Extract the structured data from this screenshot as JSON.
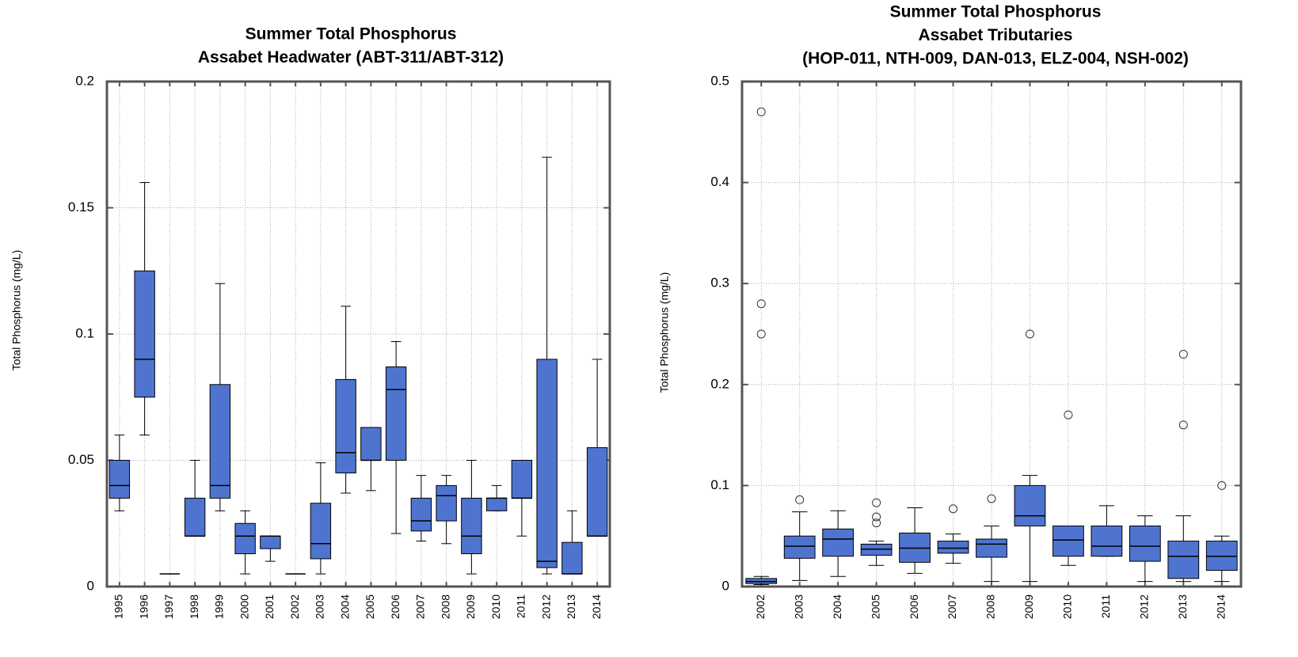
{
  "chart_data": [
    {
      "type": "box",
      "title": "Summer Total Phosphorus",
      "subtitle": [
        "Assabet Headwater (ABT-311/ABT-312)"
      ],
      "y_label": "Total Phosphorus (mg/L)",
      "color": "#4f74d0",
      "grid": true,
      "ylim": [
        0,
        0.2
      ],
      "yticks": [
        0,
        0.05,
        0.1,
        0.15,
        0.2
      ],
      "categories": [
        "1995",
        "1996",
        "1997",
        "1998",
        "1999",
        "2000",
        "2001",
        "2002",
        "2003",
        "2004",
        "2005",
        "2006",
        "2007",
        "2008",
        "2009",
        "2010",
        "2011",
        "2012",
        "2013",
        "2014"
      ],
      "boxes": [
        {
          "low": 0.03,
          "q1": 0.035,
          "median": 0.04,
          "q3": 0.05,
          "high": 0.06,
          "outliers": []
        },
        {
          "low": 0.06,
          "q1": 0.075,
          "median": 0.09,
          "q3": 0.125,
          "high": 0.16,
          "outliers": []
        },
        {
          "low": 0.005,
          "q1": 0.005,
          "median": 0.005,
          "q3": 0.005,
          "high": 0.005,
          "outliers": []
        },
        {
          "low": 0.02,
          "q1": 0.02,
          "median": 0.02,
          "q3": 0.035,
          "high": 0.05,
          "outliers": []
        },
        {
          "low": 0.03,
          "q1": 0.035,
          "median": 0.04,
          "q3": 0.08,
          "high": 0.12,
          "outliers": []
        },
        {
          "low": 0.005,
          "q1": 0.013,
          "median": 0.02,
          "q3": 0.025,
          "high": 0.03,
          "outliers": []
        },
        {
          "low": 0.01,
          "q1": 0.015,
          "median": 0.02,
          "q3": 0.02,
          "high": 0.02,
          "outliers": []
        },
        {
          "low": 0.005,
          "q1": 0.005,
          "median": 0.005,
          "q3": 0.005,
          "high": 0.005,
          "outliers": []
        },
        {
          "low": 0.005,
          "q1": 0.011,
          "median": 0.017,
          "q3": 0.033,
          "high": 0.049,
          "outliers": []
        },
        {
          "low": 0.037,
          "q1": 0.045,
          "median": 0.053,
          "q3": 0.082,
          "high": 0.111,
          "outliers": []
        },
        {
          "low": 0.038,
          "q1": 0.05,
          "median": 0.05,
          "q3": 0.063,
          "high": 0.063,
          "outliers": []
        },
        {
          "low": 0.021,
          "q1": 0.05,
          "median": 0.078,
          "q3": 0.087,
          "high": 0.097,
          "outliers": []
        },
        {
          "low": 0.018,
          "q1": 0.022,
          "median": 0.026,
          "q3": 0.035,
          "high": 0.044,
          "outliers": []
        },
        {
          "low": 0.017,
          "q1": 0.026,
          "median": 0.036,
          "q3": 0.04,
          "high": 0.044,
          "outliers": []
        },
        {
          "low": 0.005,
          "q1": 0.013,
          "median": 0.02,
          "q3": 0.035,
          "high": 0.05,
          "outliers": []
        },
        {
          "low": 0.03,
          "q1": 0.03,
          "median": 0.035,
          "q3": 0.035,
          "high": 0.04,
          "outliers": []
        },
        {
          "low": 0.02,
          "q1": 0.035,
          "median": 0.035,
          "q3": 0.05,
          "high": 0.05,
          "outliers": []
        },
        {
          "low": 0.005,
          "q1": 0.0075,
          "median": 0.01,
          "q3": 0.09,
          "high": 0.17,
          "outliers": []
        },
        {
          "low": 0.005,
          "q1": 0.005,
          "median": 0.005,
          "q3": 0.0175,
          "high": 0.03,
          "outliers": []
        },
        {
          "low": 0.02,
          "q1": 0.02,
          "median": 0.02,
          "q3": 0.055,
          "high": 0.09,
          "outliers": []
        }
      ]
    },
    {
      "type": "box",
      "title": "Summer Total Phosphorus",
      "subtitle": [
        "Assabet Tributaries",
        "(HOP-011, NTH-009, DAN-013, ELZ-004, NSH-002)"
      ],
      "y_label": "Total Phosphorus (mg/L)",
      "color": "#4f74d0",
      "grid": true,
      "ylim": [
        0,
        0.5
      ],
      "yticks": [
        0,
        0.1,
        0.2,
        0.3,
        0.4,
        0.5
      ],
      "categories": [
        "2002",
        "2003",
        "2004",
        "2005",
        "2006",
        "2007",
        "2008",
        "2009",
        "2010",
        "2011",
        "2012",
        "2013",
        "2014"
      ],
      "boxes": [
        {
          "low": 0.002,
          "q1": 0.003,
          "median": 0.005,
          "q3": 0.008,
          "high": 0.01,
          "outliers": [
            0.47,
            0.28,
            0.25
          ]
        },
        {
          "low": 0.006,
          "q1": 0.028,
          "median": 0.04,
          "q3": 0.05,
          "high": 0.074,
          "outliers": [
            0.086
          ]
        },
        {
          "low": 0.01,
          "q1": 0.03,
          "median": 0.047,
          "q3": 0.057,
          "high": 0.075,
          "outliers": []
        },
        {
          "low": 0.021,
          "q1": 0.031,
          "median": 0.037,
          "q3": 0.042,
          "high": 0.045,
          "outliers": [
            0.083,
            0.069,
            0.063
          ]
        },
        {
          "low": 0.013,
          "q1": 0.024,
          "median": 0.038,
          "q3": 0.053,
          "high": 0.078,
          "outliers": []
        },
        {
          "low": 0.023,
          "q1": 0.033,
          "median": 0.038,
          "q3": 0.045,
          "high": 0.052,
          "outliers": [
            0.077
          ]
        },
        {
          "low": 0.005,
          "q1": 0.029,
          "median": 0.042,
          "q3": 0.047,
          "high": 0.06,
          "outliers": [
            0.087
          ]
        },
        {
          "low": 0.005,
          "q1": 0.06,
          "median": 0.07,
          "q3": 0.1,
          "high": 0.11,
          "outliers": [
            0.25
          ]
        },
        {
          "low": 0.021,
          "q1": 0.03,
          "median": 0.046,
          "q3": 0.06,
          "high": 0.06,
          "outliers": [
            0.17
          ]
        },
        {
          "low": 0.03,
          "q1": 0.03,
          "median": 0.04,
          "q3": 0.06,
          "high": 0.08,
          "outliers": []
        },
        {
          "low": 0.005,
          "q1": 0.025,
          "median": 0.04,
          "q3": 0.06,
          "high": 0.07,
          "outliers": []
        },
        {
          "low": 0.005,
          "q1": 0.008,
          "median": 0.03,
          "q3": 0.045,
          "high": 0.07,
          "outliers": [
            0.23,
            0.16
          ]
        },
        {
          "low": 0.005,
          "q1": 0.016,
          "median": 0.03,
          "q3": 0.045,
          "high": 0.05,
          "outliers": [
            0.1
          ]
        }
      ]
    }
  ]
}
